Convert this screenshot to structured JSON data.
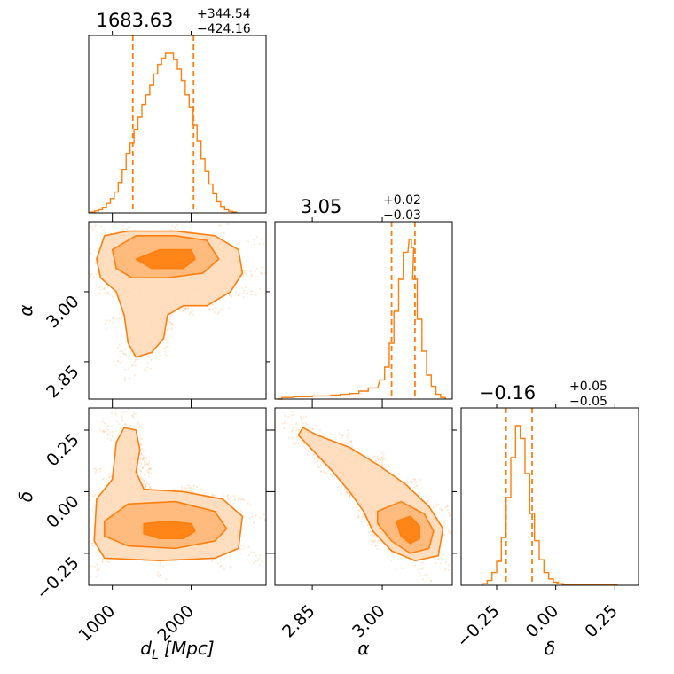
{
  "colors": {
    "main": "#ff7f0e",
    "fill_outer": "#ffd9b8",
    "fill_mid": "#ffb777",
    "fill_inner": "#ff7f0e",
    "scatter": "#ff7f0e"
  },
  "chart_data": [
    {
      "type": "histogram",
      "param": "d_L",
      "title": {
        "median": "1683.63",
        "plus": "+344.54",
        "minus": "−424.16"
      },
      "xlim": [
        700,
        2950
      ],
      "quantiles": [
        1260,
        2030
      ],
      "bins": [
        [
          750,
          0.005
        ],
        [
          800,
          0.012
        ],
        [
          850,
          0.02
        ],
        [
          900,
          0.035
        ],
        [
          950,
          0.06
        ],
        [
          1000,
          0.09
        ],
        [
          1050,
          0.13
        ],
        [
          1100,
          0.19
        ],
        [
          1150,
          0.27
        ],
        [
          1200,
          0.37
        ],
        [
          1250,
          0.44
        ],
        [
          1300,
          0.52
        ],
        [
          1350,
          0.6
        ],
        [
          1400,
          0.68
        ],
        [
          1450,
          0.74
        ],
        [
          1500,
          0.8
        ],
        [
          1550,
          0.87
        ],
        [
          1600,
          0.93
        ],
        [
          1650,
          0.97
        ],
        [
          1700,
          1.0
        ],
        [
          1750,
          1.0
        ],
        [
          1800,
          0.96
        ],
        [
          1850,
          0.9
        ],
        [
          1900,
          0.83
        ],
        [
          1950,
          0.74
        ],
        [
          2000,
          0.66
        ],
        [
          2050,
          0.55
        ],
        [
          2100,
          0.45
        ],
        [
          2150,
          0.34
        ],
        [
          2200,
          0.26
        ],
        [
          2250,
          0.18
        ],
        [
          2300,
          0.12
        ],
        [
          2350,
          0.07
        ],
        [
          2400,
          0.04
        ],
        [
          2450,
          0.02
        ],
        [
          2500,
          0.01
        ],
        [
          2550,
          0.005
        ]
      ]
    },
    {
      "type": "histogram",
      "param": "alpha",
      "title": {
        "median": "3.05",
        "plus": "+0.02",
        "minus": "−0.03"
      },
      "xlim": [
        2.77,
        3.15
      ],
      "quantiles": [
        3.02,
        3.07
      ],
      "bins": [
        [
          2.78,
          0.0
        ],
        [
          2.79,
          0.01
        ],
        [
          2.8,
          0.01
        ],
        [
          2.82,
          0.015
        ],
        [
          2.84,
          0.015
        ],
        [
          2.86,
          0.02
        ],
        [
          2.88,
          0.02
        ],
        [
          2.9,
          0.025
        ],
        [
          2.92,
          0.03
        ],
        [
          2.94,
          0.035
        ],
        [
          2.96,
          0.05
        ],
        [
          2.98,
          0.07
        ],
        [
          3.0,
          0.12
        ],
        [
          3.01,
          0.2
        ],
        [
          3.02,
          0.35
        ],
        [
          3.03,
          0.55
        ],
        [
          3.04,
          0.75
        ],
        [
          3.05,
          0.92
        ],
        [
          3.06,
          1.0
        ],
        [
          3.065,
          0.95
        ],
        [
          3.07,
          0.75
        ],
        [
          3.08,
          0.5
        ],
        [
          3.09,
          0.3
        ],
        [
          3.1,
          0.15
        ],
        [
          3.11,
          0.08
        ],
        [
          3.12,
          0.03
        ],
        [
          3.13,
          0.01
        ]
      ]
    },
    {
      "type": "histogram",
      "param": "delta",
      "title": {
        "median": "−0.16",
        "plus": "+0.05",
        "minus": "−0.05"
      },
      "xlim": [
        -0.4,
        0.35
      ],
      "quantiles": [
        -0.21,
        -0.1
      ],
      "bins": [
        [
          -0.3,
          0.01
        ],
        [
          -0.28,
          0.03
        ],
        [
          -0.26,
          0.08
        ],
        [
          -0.24,
          0.15
        ],
        [
          -0.22,
          0.3
        ],
        [
          -0.2,
          0.55
        ],
        [
          -0.18,
          0.8
        ],
        [
          -0.16,
          1.0
        ],
        [
          -0.14,
          0.92
        ],
        [
          -0.12,
          0.7
        ],
        [
          -0.1,
          0.45
        ],
        [
          -0.08,
          0.28
        ],
        [
          -0.06,
          0.16
        ],
        [
          -0.04,
          0.08
        ],
        [
          -0.02,
          0.04
        ],
        [
          0.0,
          0.02
        ],
        [
          0.02,
          0.01
        ],
        [
          0.05,
          0.005
        ],
        [
          0.1,
          0.004
        ],
        [
          0.15,
          0.003
        ],
        [
          0.2,
          0.002
        ],
        [
          0.25,
          0.003
        ]
      ]
    },
    {
      "type": "contour",
      "x_param": "d_L",
      "y_param": "alpha",
      "xlim": [
        700,
        2950
      ],
      "ylim": [
        2.77,
        3.15
      ],
      "levels": [
        [
          [
            800,
            3.07
          ],
          [
            900,
            3.12
          ],
          [
            1200,
            3.13
          ],
          [
            1800,
            3.13
          ],
          [
            2300,
            3.12
          ],
          [
            2600,
            3.09
          ],
          [
            2650,
            3.04
          ],
          [
            2500,
            3.0
          ],
          [
            2200,
            2.97
          ],
          [
            1900,
            2.97
          ],
          [
            1700,
            2.95
          ],
          [
            1650,
            2.9
          ],
          [
            1500,
            2.87
          ],
          [
            1300,
            2.86
          ],
          [
            1200,
            2.89
          ],
          [
            1150,
            2.95
          ],
          [
            1050,
            3.0
          ],
          [
            850,
            3.03
          ]
        ],
        [
          [
            1000,
            3.09
          ],
          [
            1300,
            3.12
          ],
          [
            1800,
            3.12
          ],
          [
            2200,
            3.11
          ],
          [
            2350,
            3.07
          ],
          [
            2150,
            3.04
          ],
          [
            1700,
            3.03
          ],
          [
            1250,
            3.03
          ],
          [
            1050,
            3.05
          ]
        ],
        [
          [
            1300,
            3.07
          ],
          [
            1600,
            3.09
          ],
          [
            2000,
            3.09
          ],
          [
            2050,
            3.07
          ],
          [
            1900,
            3.05
          ],
          [
            1500,
            3.05
          ]
        ]
      ]
    },
    {
      "type": "contour",
      "x_param": "d_L",
      "y_param": "delta",
      "xlim": [
        700,
        2950
      ],
      "ylim": [
        -0.38,
        0.34
      ],
      "levels": [
        [
          [
            800,
            -0.03
          ],
          [
            1000,
            0.05
          ],
          [
            1050,
            0.2
          ],
          [
            1150,
            0.26
          ],
          [
            1300,
            0.25
          ],
          [
            1350,
            0.17
          ],
          [
            1300,
            0.08
          ],
          [
            1400,
            0.01
          ],
          [
            1900,
            0.0
          ],
          [
            2400,
            -0.03
          ],
          [
            2650,
            -0.1
          ],
          [
            2600,
            -0.23
          ],
          [
            2300,
            -0.27
          ],
          [
            1600,
            -0.28
          ],
          [
            900,
            -0.27
          ],
          [
            770,
            -0.2
          ]
        ],
        [
          [
            900,
            -0.12
          ],
          [
            1200,
            -0.05
          ],
          [
            1800,
            -0.04
          ],
          [
            2300,
            -0.08
          ],
          [
            2450,
            -0.15
          ],
          [
            2300,
            -0.2
          ],
          [
            1800,
            -0.23
          ],
          [
            1200,
            -0.22
          ],
          [
            900,
            -0.18
          ]
        ],
        [
          [
            1400,
            -0.13
          ],
          [
            1700,
            -0.12
          ],
          [
            2000,
            -0.13
          ],
          [
            2050,
            -0.16
          ],
          [
            1900,
            -0.19
          ],
          [
            1600,
            -0.19
          ],
          [
            1400,
            -0.17
          ]
        ]
      ]
    },
    {
      "type": "contour",
      "x_param": "alpha",
      "y_param": "delta",
      "xlim": [
        2.77,
        3.15
      ],
      "ylim": [
        -0.38,
        0.34
      ],
      "levels": [
        [
          [
            2.83,
            0.26
          ],
          [
            2.86,
            0.23
          ],
          [
            2.93,
            0.18
          ],
          [
            2.99,
            0.11
          ],
          [
            3.05,
            0.03
          ],
          [
            3.1,
            -0.06
          ],
          [
            3.13,
            -0.15
          ],
          [
            3.12,
            -0.26
          ],
          [
            3.07,
            -0.28
          ],
          [
            3.02,
            -0.24
          ],
          [
            2.98,
            -0.16
          ],
          [
            2.96,
            -0.08
          ],
          [
            2.93,
            0.0
          ],
          [
            2.89,
            0.09
          ],
          [
            2.85,
            0.17
          ],
          [
            2.82,
            0.23
          ]
        ],
        [
          [
            2.99,
            -0.08
          ],
          [
            3.04,
            -0.04
          ],
          [
            3.09,
            -0.09
          ],
          [
            3.11,
            -0.16
          ],
          [
            3.1,
            -0.23
          ],
          [
            3.06,
            -0.25
          ],
          [
            3.02,
            -0.2
          ],
          [
            2.99,
            -0.13
          ]
        ],
        [
          [
            3.03,
            -0.12
          ],
          [
            3.06,
            -0.1
          ],
          [
            3.08,
            -0.14
          ],
          [
            3.08,
            -0.19
          ],
          [
            3.06,
            -0.21
          ],
          [
            3.04,
            -0.18
          ]
        ]
      ]
    }
  ],
  "axes": {
    "d_L": {
      "label": "d_L [Mpc]",
      "ticks": [
        1000,
        2000
      ],
      "tick_labels": [
        "1000",
        "2000"
      ]
    },
    "alpha": {
      "label": "α",
      "ticks": [
        2.85,
        3.0
      ],
      "tick_labels": [
        "2.85",
        "3.00"
      ]
    },
    "delta": {
      "label": "δ",
      "ticks": [
        -0.25,
        0.0,
        0.25
      ],
      "tick_labels": [
        "−0.25",
        "0.00",
        "0.25"
      ]
    }
  }
}
